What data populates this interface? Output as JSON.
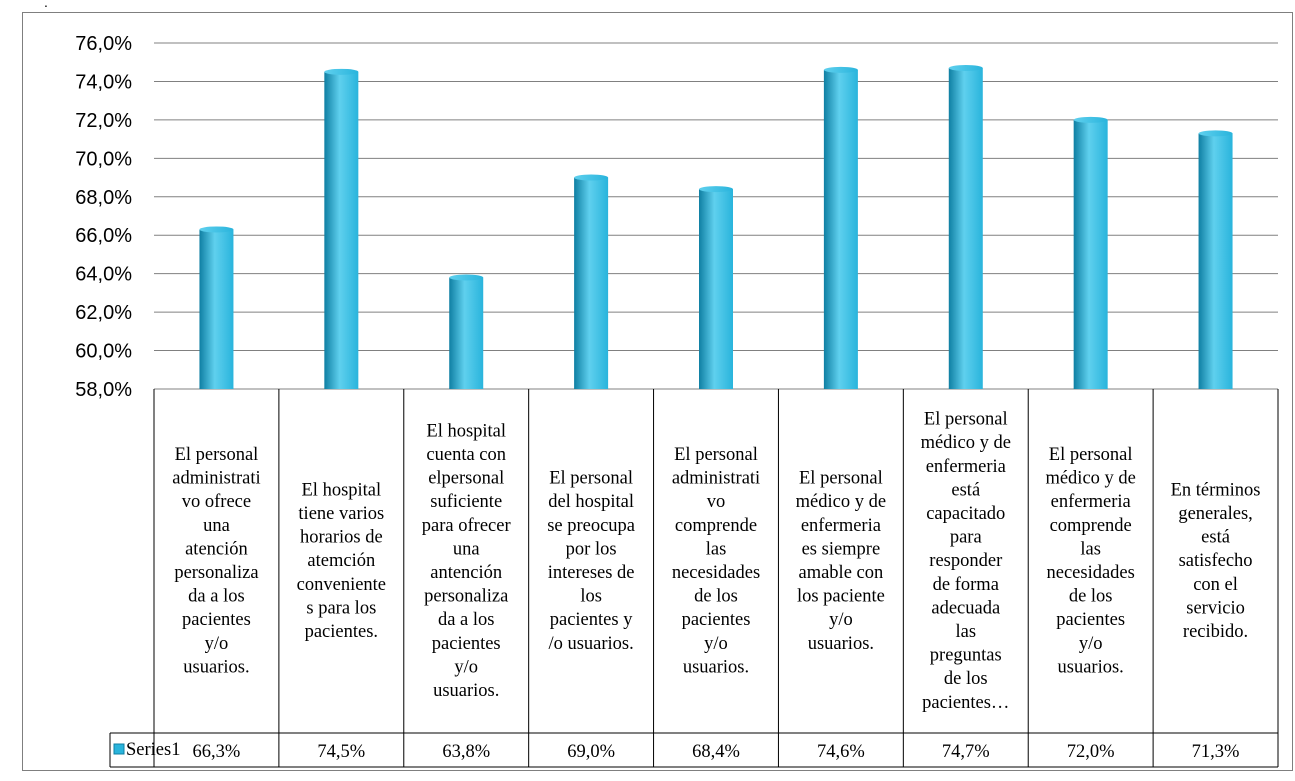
{
  "marker": ".",
  "colors": {
    "bar_light": "#5fd0ee",
    "bar_mid": "#29b4dc",
    "bar_dark": "#0f7fa3",
    "grid": "#808080",
    "border": "#7f7f7f"
  },
  "chart_data": {
    "type": "bar",
    "categories": [
      [
        "El personal",
        "administrati",
        "vo ofrece",
        "una",
        "atención",
        "personaliza",
        "da a los",
        "pacientes",
        "y/o",
        "usuarios."
      ],
      [
        "El hospital",
        "tiene varios",
        "horarios de",
        "atemción",
        "conveniente",
        "s para los",
        "pacientes."
      ],
      [
        "El hospital",
        "cuenta con",
        "elpersonal",
        "suficiente",
        "para ofrecer",
        "una",
        "antención",
        "personaliza",
        "da a los",
        "pacientes",
        "y/o",
        "usuarios."
      ],
      [
        "El personal",
        "del hospital",
        "se preocupa",
        "por los",
        "intereses de",
        "los",
        "pacientes y",
        "/o usuarios."
      ],
      [
        "El personal",
        "administrati",
        "vo",
        "comprende",
        "las",
        "necesidades",
        "de los",
        "pacientes",
        "y/o",
        "usuarios."
      ],
      [
        "El personal",
        "médico y de",
        "enfermeria",
        "es siempre",
        "amable con",
        "los paciente",
        "y/o",
        "usuarios."
      ],
      [
        "El personal",
        "médico y de",
        "enfermeria",
        "está",
        "capacitado",
        "para",
        "responder",
        "de forma",
        "adecuada",
        "las",
        "preguntas",
        "de los",
        "pacientes…"
      ],
      [
        "El personal",
        "médico y de",
        "enfermeria",
        "comprende",
        "las",
        "necesidades",
        "de los",
        "pacientes",
        "y/o",
        "usuarios."
      ],
      [
        "En términos",
        "generales,",
        "está",
        "satisfecho",
        "con el",
        "servicio",
        "recibido."
      ]
    ],
    "series": [
      {
        "name": "Series1",
        "values": [
          66.3,
          74.5,
          63.8,
          69.0,
          68.4,
          74.6,
          74.7,
          72.0,
          71.3
        ],
        "labels": [
          "66,3%",
          "74,5%",
          "63,8%",
          "69,0%",
          "68,4%",
          "74,6%",
          "74,7%",
          "72,0%",
          "71,3%"
        ]
      }
    ],
    "ylim": [
      58.0,
      76.0
    ],
    "yticks": [
      "58,0%",
      "60,0%",
      "62,0%",
      "64,0%",
      "66,0%",
      "68,0%",
      "70,0%",
      "72,0%",
      "74,0%",
      "76,0%"
    ],
    "ytick_values": [
      58,
      60,
      62,
      64,
      66,
      68,
      70,
      72,
      74,
      76
    ],
    "grid": true,
    "legend": "data-table",
    "title": "",
    "xlabel": "",
    "ylabel": ""
  }
}
